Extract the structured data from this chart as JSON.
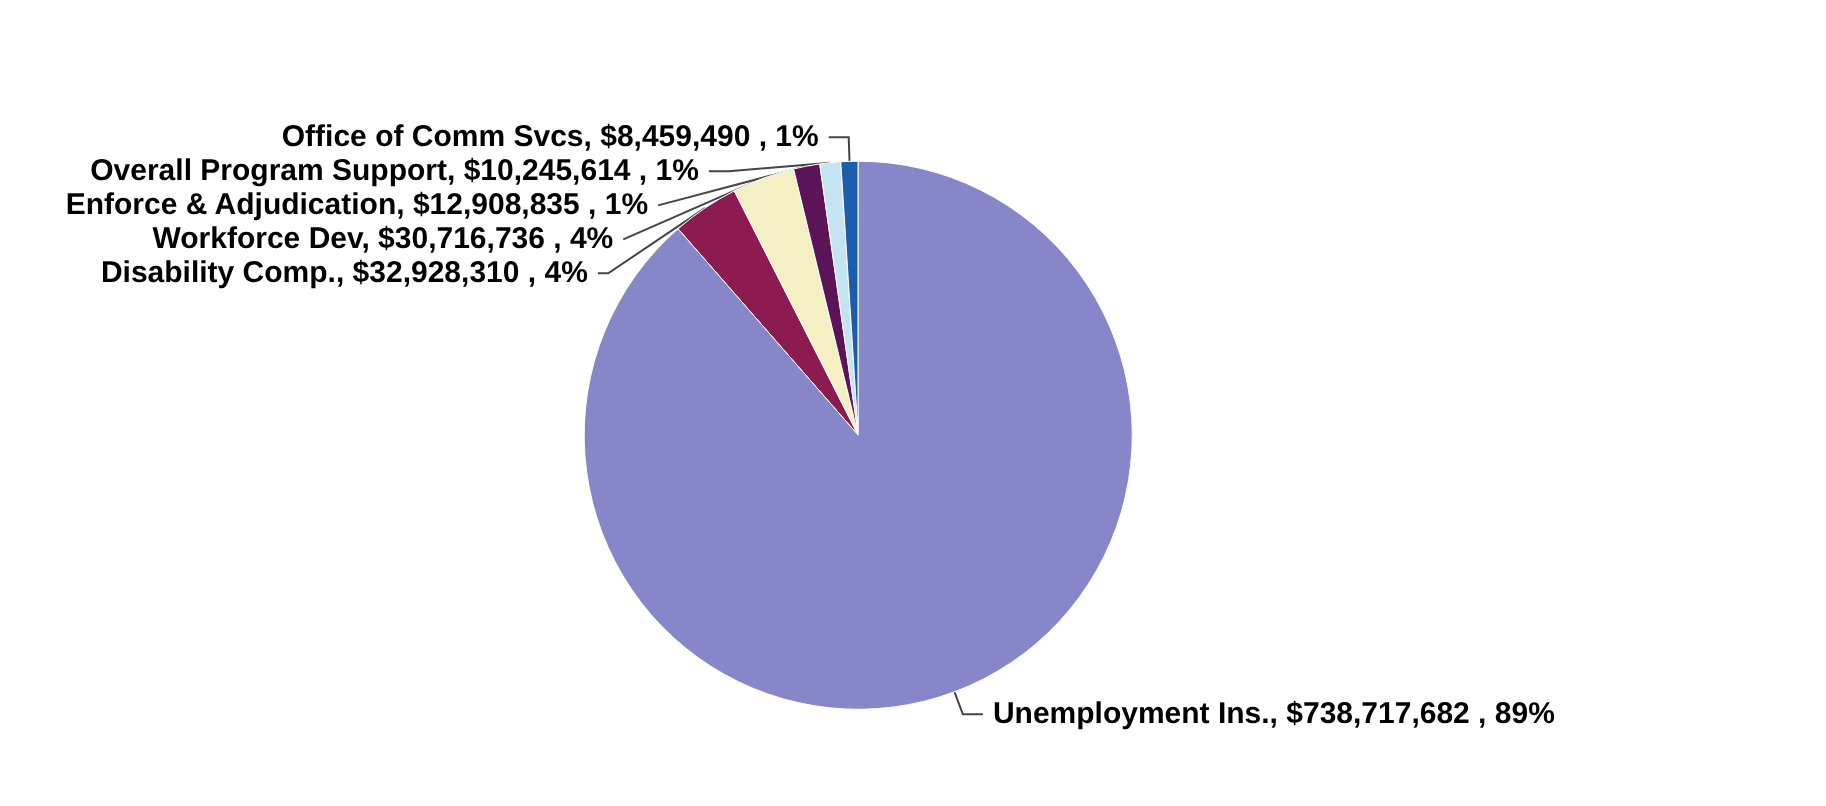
{
  "chart_data": {
    "type": "pie",
    "categories": [
      "Disability Comp.",
      "Workforce Dev",
      "Enforce & Adjudication",
      "Overall Program Support",
      "Office of Comm Svcs",
      "Unemployment Ins."
    ],
    "values": [
      32928310,
      30716736,
      12908835,
      10245614,
      8459490,
      738717682
    ],
    "value_labels": [
      "$32,928,310 , 4%",
      "$30,716,736 , 4%",
      "$12,908,835 , 1%",
      "$10,245,614 , 1%",
      "$8,459,490 , 1%",
      "$738,717,682 , 89%"
    ],
    "colors": [
      "#8c1c50",
      "#f4f0c4",
      "#5c1458",
      "#c4e4f4",
      "#1c5cac",
      "#8686c8"
    ]
  }
}
